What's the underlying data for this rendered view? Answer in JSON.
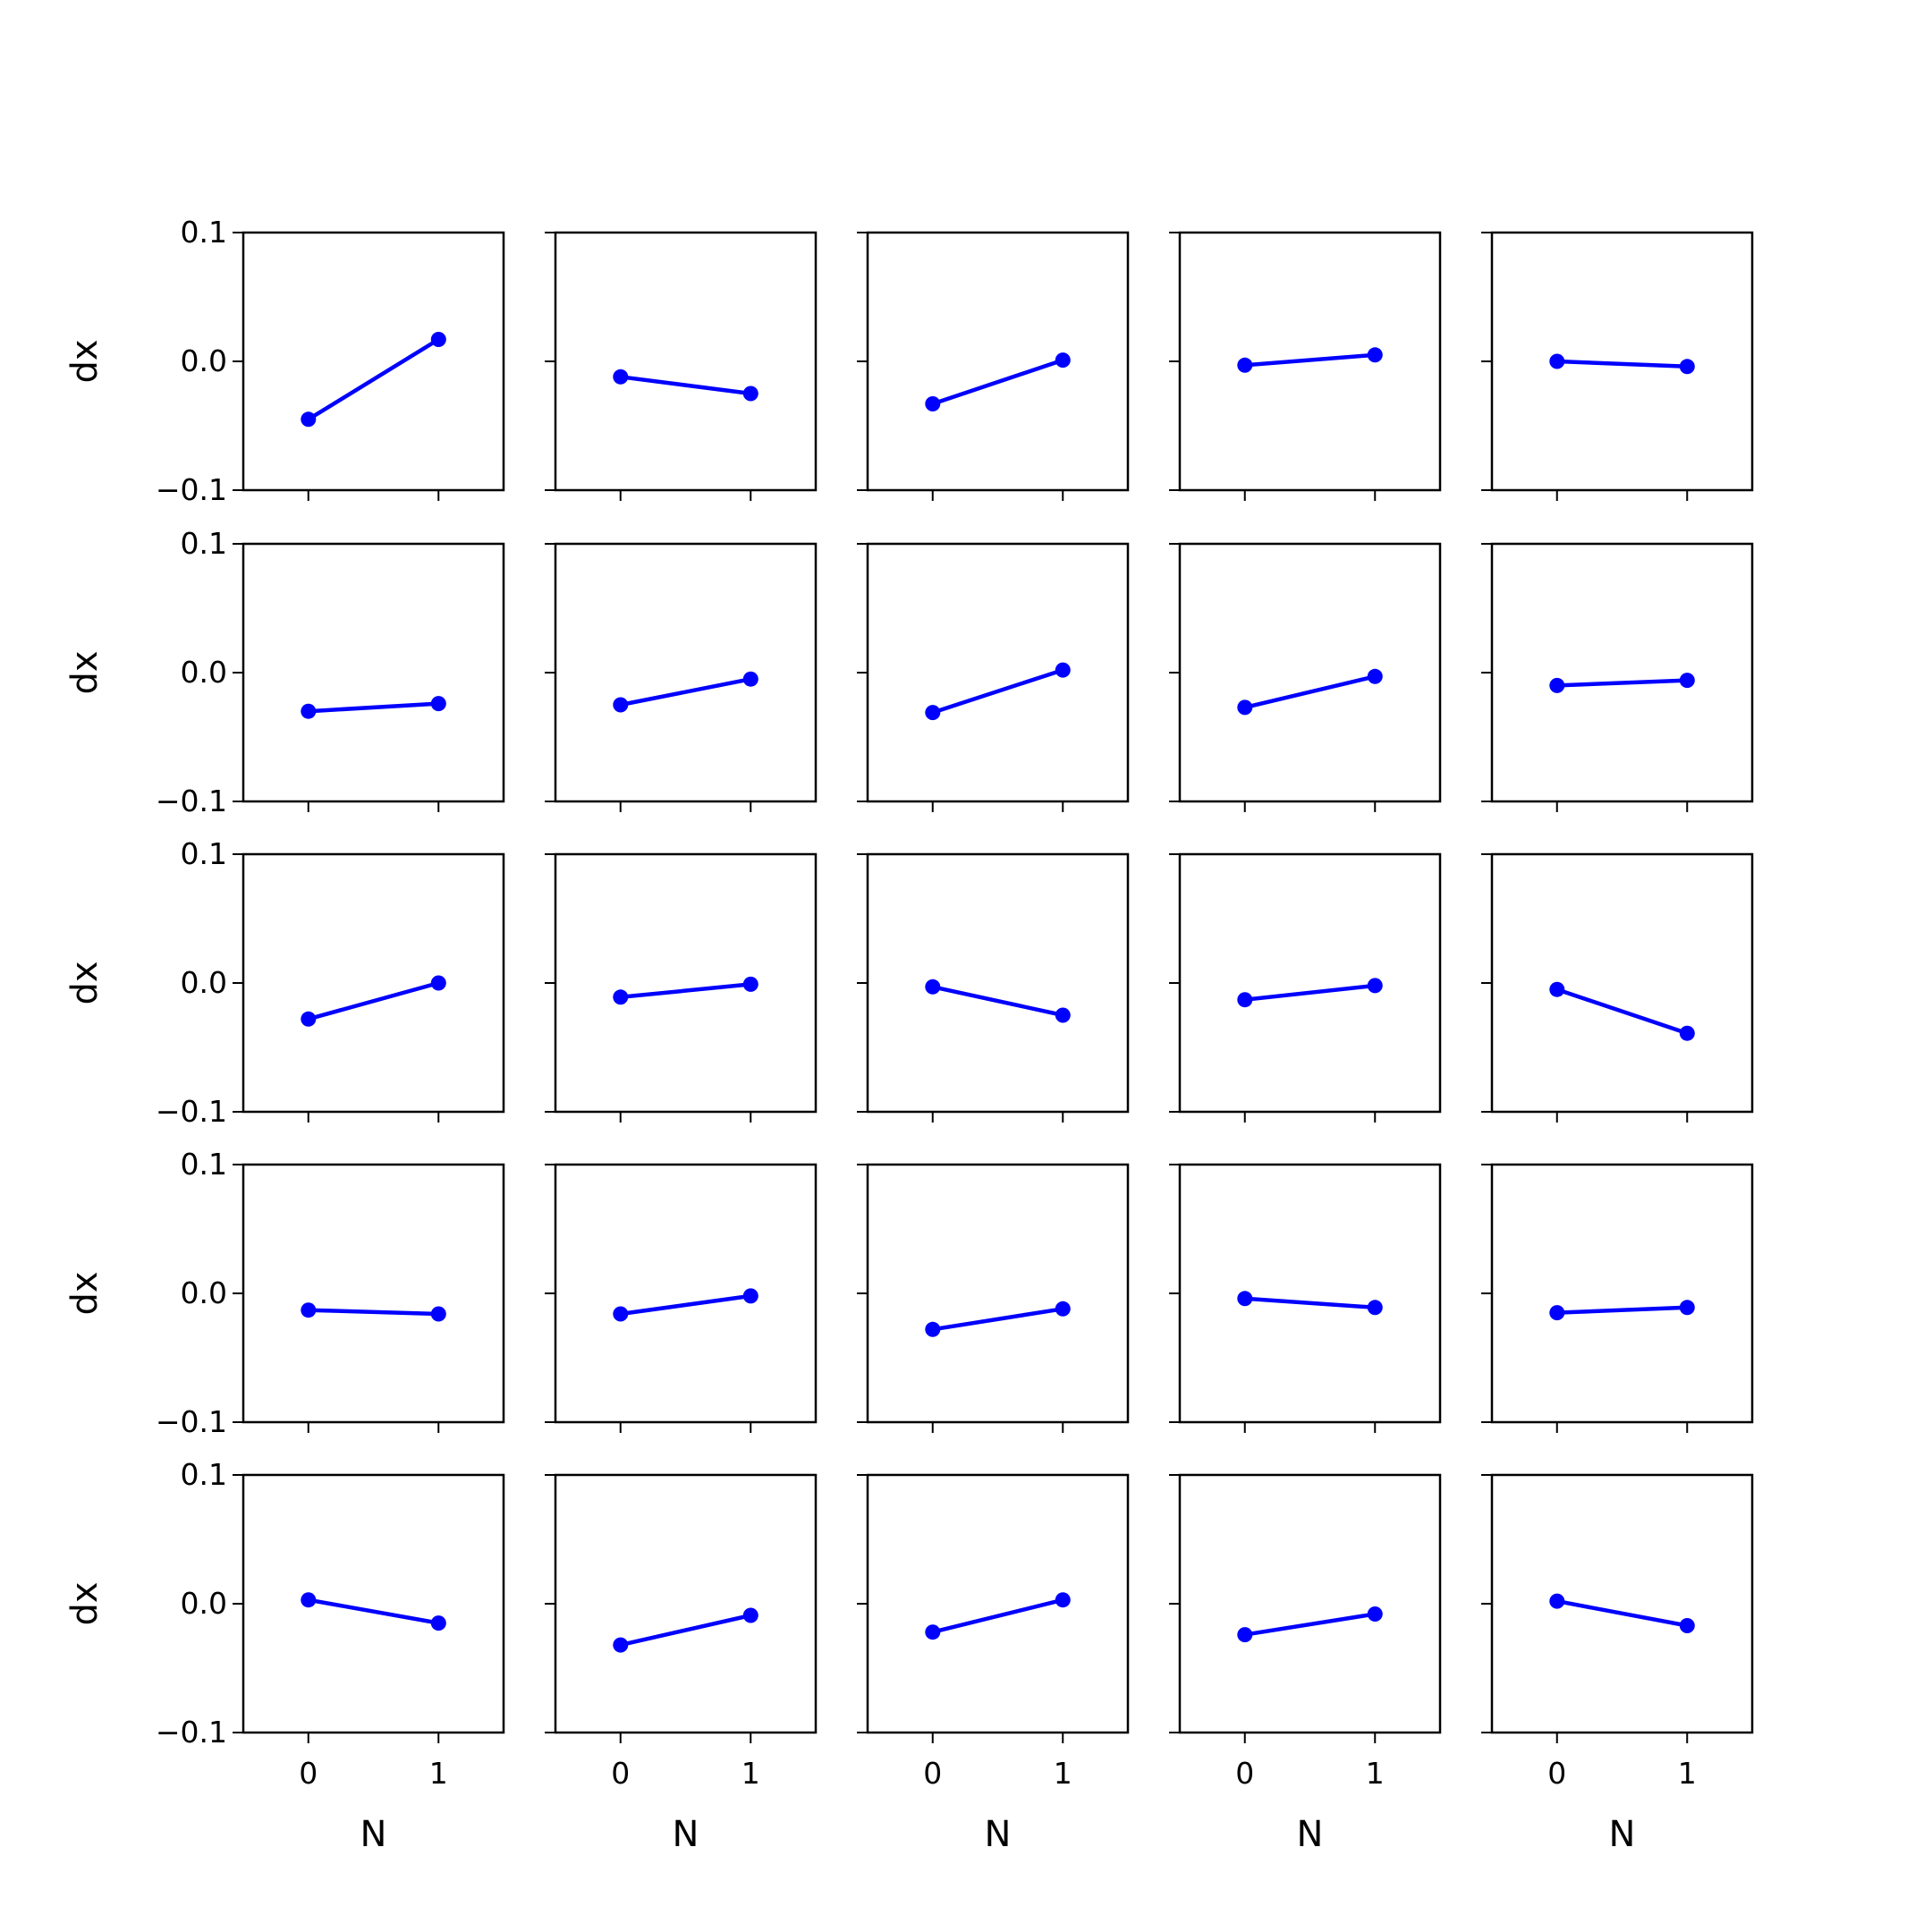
{
  "chart_data": {
    "type": "line",
    "layout": "5x5 grid of small multiples, shared axes",
    "xlabel": "N",
    "ylabel": "dx",
    "x": [
      0,
      1
    ],
    "xlim": [
      -0.5,
      1.5
    ],
    "ylim": [
      -0.1,
      0.1
    ],
    "x_ticks": [
      0,
      1
    ],
    "x_tick_labels": [
      "0",
      "1"
    ],
    "y_ticks": [
      0.1,
      0.0,
      -0.1
    ],
    "y_tick_labels": [
      "0.1",
      "0.0",
      "−0.1"
    ],
    "grid": false,
    "legend": false,
    "colors": {
      "series": "#0000ff",
      "axes": "#000000",
      "background": "#ffffff"
    },
    "panels": [
      [
        [
          -0.045,
          0.017
        ],
        [
          -0.012,
          -0.025
        ],
        [
          -0.033,
          0.001
        ],
        [
          -0.003,
          0.005
        ],
        [
          0.0,
          -0.004
        ]
      ],
      [
        [
          -0.03,
          -0.024
        ],
        [
          -0.025,
          -0.005
        ],
        [
          -0.031,
          0.002
        ],
        [
          -0.027,
          -0.003
        ],
        [
          -0.01,
          -0.006
        ]
      ],
      [
        [
          -0.028,
          0.0
        ],
        [
          -0.011,
          -0.001
        ],
        [
          -0.003,
          -0.025
        ],
        [
          -0.013,
          -0.002
        ],
        [
          -0.005,
          -0.039
        ]
      ],
      [
        [
          -0.013,
          -0.016
        ],
        [
          -0.016,
          -0.002
        ],
        [
          -0.028,
          -0.012
        ],
        [
          -0.004,
          -0.011
        ],
        [
          -0.015,
          -0.011
        ]
      ],
      [
        [
          0.003,
          -0.015
        ],
        [
          -0.032,
          -0.009
        ],
        [
          -0.022,
          0.003
        ],
        [
          -0.024,
          -0.008
        ],
        [
          0.002,
          -0.017
        ]
      ]
    ]
  }
}
